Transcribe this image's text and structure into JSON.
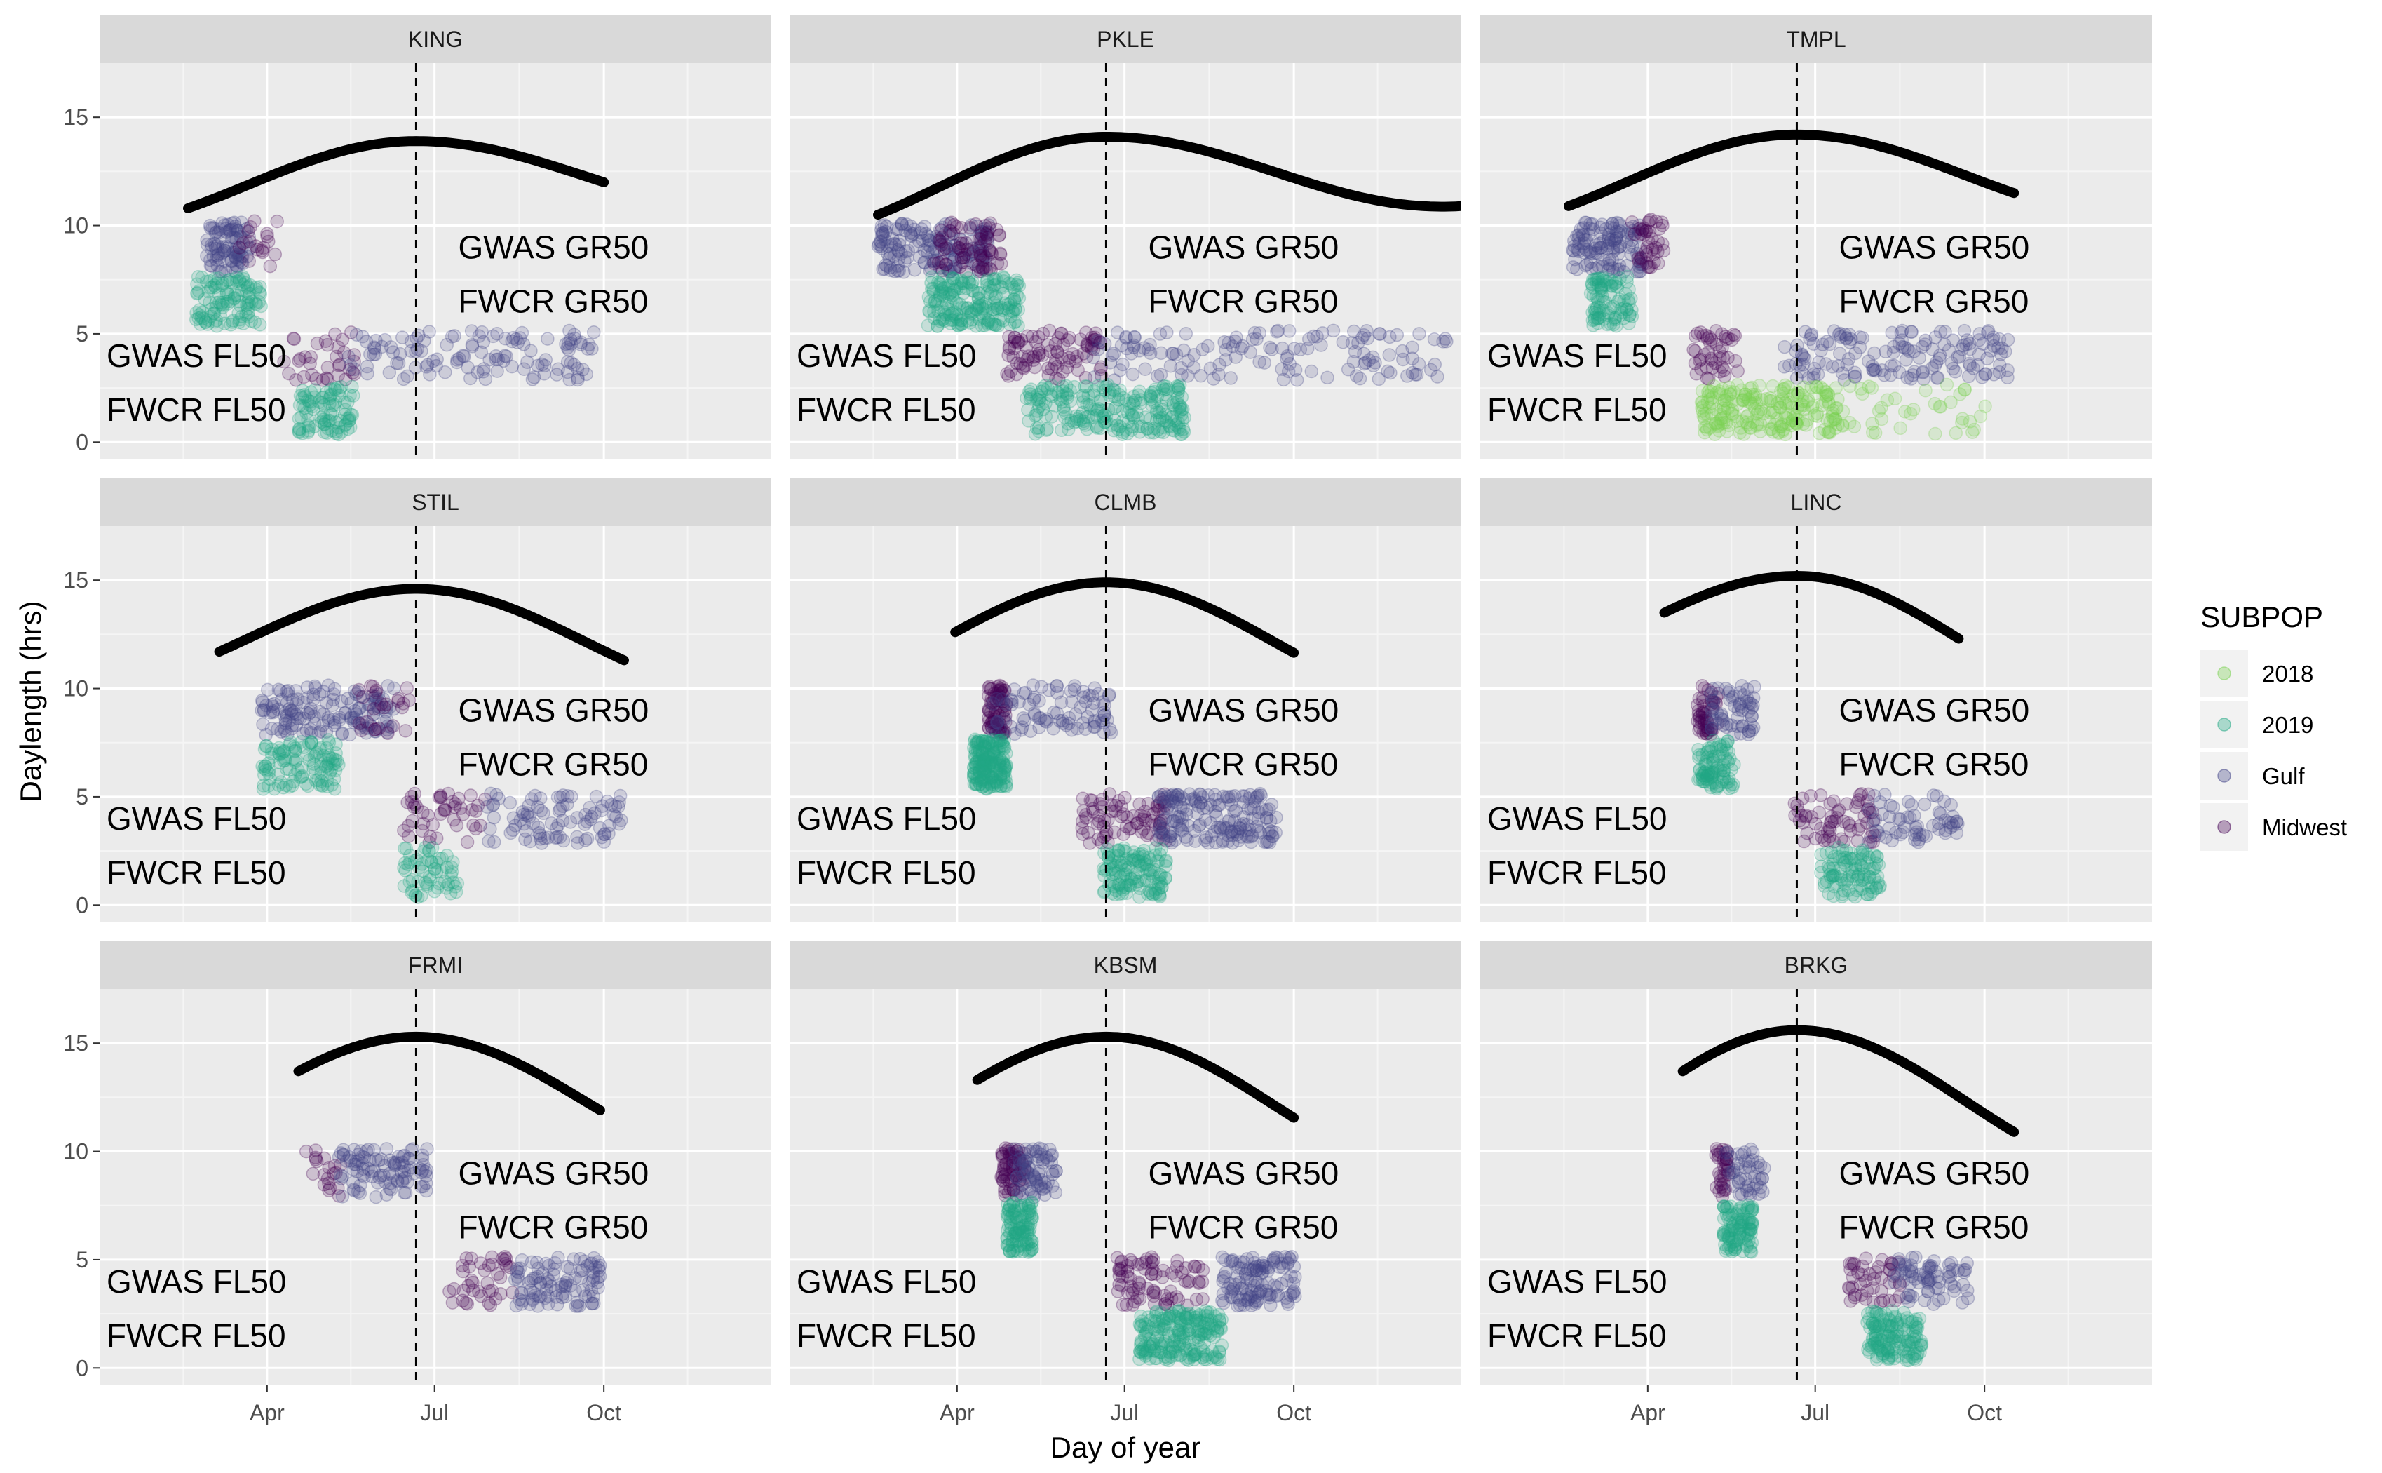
{
  "chart_data": {
    "type": "scatter",
    "xlabel": "Day of year",
    "ylabel": "Daylength (hrs)",
    "xlim": [
      0,
      365
    ],
    "ylim": [
      -0.8,
      17.5
    ],
    "x_ticks": [
      {
        "day": 91,
        "label": "Apr"
      },
      {
        "day": 182,
        "label": "Jul"
      },
      {
        "day": 274,
        "label": "Oct"
      }
    ],
    "y_ticks": [
      0,
      5,
      10,
      15
    ],
    "solstice_day": 172,
    "legend": {
      "title": "SUBPOP",
      "placement": "right",
      "entries": [
        {
          "key": "2018",
          "label": "2018",
          "color": "#7AD151"
        },
        {
          "key": "2019",
          "label": "2019",
          "color": "#22A884"
        },
        {
          "key": "Gulf",
          "label": "Gulf",
          "color": "#414487"
        },
        {
          "key": "Midwest",
          "label": "Midwest",
          "color": "#440154"
        }
      ]
    },
    "annotations": {
      "gwas_gr50": {
        "text": "GWAS GR50",
        "y": 9
      },
      "fwcr_gr50": {
        "text": "FWCR GR50",
        "y": 6.5
      },
      "gwas_fl50": {
        "text": "GWAS FL50",
        "y": 4
      },
      "fwcr_fl50": {
        "text": "FWCR FL50",
        "y": 1.5
      }
    },
    "panels": [
      {
        "name": "KING",
        "daylength_curve": {
          "start": 48,
          "end": 274,
          "min": 10.8,
          "max": 13.9,
          "end_value": 12
        },
        "clusters": [
          {
            "sub": "Gulf",
            "y": 9,
            "x_from": 58,
            "x_to": 82,
            "n": 90
          },
          {
            "sub": "Midwest",
            "y": 9.2,
            "x_from": 75,
            "x_to": 98,
            "n": 18
          },
          {
            "sub": "2019",
            "y": 6.5,
            "x_from": 52,
            "x_to": 88,
            "n": 110
          },
          {
            "sub": "Midwest",
            "y": 4,
            "x_from": 100,
            "x_to": 140,
            "n": 35
          },
          {
            "sub": "Gulf",
            "y": 4,
            "x_from": 135,
            "x_to": 270,
            "n": 120
          },
          {
            "sub": "2019",
            "y": 1.5,
            "x_from": 108,
            "x_to": 138,
            "n": 90
          }
        ]
      },
      {
        "name": "PKLE",
        "daylength_curve": {
          "start": 48,
          "end": 365,
          "min": 10.5,
          "max": 14.1,
          "end_value": 10.9
        },
        "clusters": [
          {
            "sub": "Gulf",
            "y": 9,
            "x_from": 48,
            "x_to": 110,
            "n": 170
          },
          {
            "sub": "Midwest",
            "y": 9,
            "x_from": 78,
            "x_to": 115,
            "n": 70
          },
          {
            "sub": "2019",
            "y": 6.5,
            "x_from": 75,
            "x_to": 125,
            "n": 190
          },
          {
            "sub": "Midwest",
            "y": 4,
            "x_from": 118,
            "x_to": 170,
            "n": 90
          },
          {
            "sub": "Gulf",
            "y": 4,
            "x_from": 165,
            "x_to": 360,
            "n": 140
          },
          {
            "sub": "2019",
            "y": 1.5,
            "x_from": 128,
            "x_to": 215,
            "n": 230
          }
        ]
      },
      {
        "name": "TMPL",
        "daylength_curve": {
          "start": 48,
          "end": 290,
          "min": 10.9,
          "max": 14.2,
          "end_value": 11.5
        },
        "clusters": [
          {
            "sub": "Gulf",
            "y": 9,
            "x_from": 50,
            "x_to": 88,
            "n": 120
          },
          {
            "sub": "Midwest",
            "y": 9.2,
            "x_from": 82,
            "x_to": 100,
            "n": 40
          },
          {
            "sub": "2019",
            "y": 6.5,
            "x_from": 60,
            "x_to": 83,
            "n": 90
          },
          {
            "sub": "Midwest",
            "y": 4,
            "x_from": 115,
            "x_to": 140,
            "n": 45
          },
          {
            "sub": "Gulf",
            "y": 4,
            "x_from": 165,
            "x_to": 287,
            "n": 150
          },
          {
            "sub": "2018",
            "y": 1.5,
            "x_from": 120,
            "x_to": 195,
            "n": 220
          },
          {
            "sub": "2018",
            "y": 1.5,
            "x_from": 195,
            "x_to": 275,
            "n": 40
          }
        ]
      },
      {
        "name": "STIL",
        "daylength_curve": {
          "start": 65,
          "end": 285,
          "min": 11.7,
          "max": 14.6,
          "end_value": 11.3
        },
        "clusters": [
          {
            "sub": "Gulf",
            "y": 9,
            "x_from": 88,
            "x_to": 160,
            "n": 150
          },
          {
            "sub": "Midwest",
            "y": 9,
            "x_from": 140,
            "x_to": 170,
            "n": 25
          },
          {
            "sub": "2019",
            "y": 6.5,
            "x_from": 88,
            "x_to": 130,
            "n": 110
          },
          {
            "sub": "Midwest",
            "y": 4,
            "x_from": 165,
            "x_to": 210,
            "n": 45
          },
          {
            "sub": "Gulf",
            "y": 4,
            "x_from": 210,
            "x_to": 285,
            "n": 90
          },
          {
            "sub": "2019",
            "y": 1.5,
            "x_from": 165,
            "x_to": 195,
            "n": 60
          }
        ]
      },
      {
        "name": "CLMB",
        "daylength_curve": {
          "start": 90,
          "end": 275,
          "min": 12.6,
          "max": 14.9,
          "end_value": 11.6
        },
        "clusters": [
          {
            "sub": "Midwest",
            "y": 9,
            "x_from": 108,
            "x_to": 118,
            "n": 80
          },
          {
            "sub": "Gulf",
            "y": 9,
            "x_from": 110,
            "x_to": 175,
            "n": 90
          },
          {
            "sub": "2019",
            "y": 6.5,
            "x_from": 100,
            "x_to": 118,
            "n": 180
          },
          {
            "sub": "Midwest",
            "y": 4,
            "x_from": 158,
            "x_to": 205,
            "n": 80
          },
          {
            "sub": "Gulf",
            "y": 4,
            "x_from": 200,
            "x_to": 265,
            "n": 170
          },
          {
            "sub": "2019",
            "y": 1.5,
            "x_from": 170,
            "x_to": 205,
            "n": 130
          }
        ]
      },
      {
        "name": "LINC",
        "daylength_curve": {
          "start": 100,
          "end": 260,
          "min": 13.5,
          "max": 15.2,
          "end_value": 12.3
        },
        "clusters": [
          {
            "sub": "Midwest",
            "y": 9,
            "x_from": 118,
            "x_to": 130,
            "n": 50
          },
          {
            "sub": "Gulf",
            "y": 9,
            "x_from": 125,
            "x_to": 150,
            "n": 60
          },
          {
            "sub": "2019",
            "y": 6.5,
            "x_from": 118,
            "x_to": 138,
            "n": 90
          },
          {
            "sub": "Midwest",
            "y": 4,
            "x_from": 170,
            "x_to": 215,
            "n": 65
          },
          {
            "sub": "Gulf",
            "y": 4,
            "x_from": 210,
            "x_to": 260,
            "n": 60
          },
          {
            "sub": "2019",
            "y": 1.5,
            "x_from": 185,
            "x_to": 218,
            "n": 100
          }
        ]
      },
      {
        "name": "FRMI",
        "daylength_curve": {
          "start": 108,
          "end": 272,
          "min": 13.7,
          "max": 15.3,
          "end_value": 11.9
        },
        "clusters": [
          {
            "sub": "Midwest",
            "y": 9,
            "x_from": 112,
            "x_to": 135,
            "n": 20
          },
          {
            "sub": "Gulf",
            "y": 9,
            "x_from": 130,
            "x_to": 178,
            "n": 100
          },
          {
            "sub": "Midwest",
            "y": 4,
            "x_from": 190,
            "x_to": 225,
            "n": 40
          },
          {
            "sub": "Gulf",
            "y": 4,
            "x_from": 225,
            "x_to": 272,
            "n": 100
          }
        ]
      },
      {
        "name": "KBSM",
        "daylength_curve": {
          "start": 102,
          "end": 275,
          "min": 13.3,
          "max": 15.3,
          "end_value": 11.5
        },
        "clusters": [
          {
            "sub": "Midwest",
            "y": 9,
            "x_from": 115,
            "x_to": 128,
            "n": 70
          },
          {
            "sub": "Gulf",
            "y": 9,
            "x_from": 122,
            "x_to": 145,
            "n": 70
          },
          {
            "sub": "2019",
            "y": 6.5,
            "x_from": 118,
            "x_to": 132,
            "n": 110
          },
          {
            "sub": "Midwest",
            "y": 4,
            "x_from": 178,
            "x_to": 225,
            "n": 80
          },
          {
            "sub": "Gulf",
            "y": 4,
            "x_from": 235,
            "x_to": 275,
            "n": 120
          },
          {
            "sub": "2019",
            "y": 1.5,
            "x_from": 190,
            "x_to": 235,
            "n": 210
          }
        ]
      },
      {
        "name": "BRKG",
        "daylength_curve": {
          "start": 110,
          "end": 290,
          "min": 13.7,
          "max": 15.6,
          "end_value": 10.9
        },
        "clusters": [
          {
            "sub": "Midwest",
            "y": 9,
            "x_from": 128,
            "x_to": 135,
            "n": 35
          },
          {
            "sub": "Gulf",
            "y": 9,
            "x_from": 133,
            "x_to": 155,
            "n": 45
          },
          {
            "sub": "2019",
            "y": 6.5,
            "x_from": 132,
            "x_to": 148,
            "n": 100
          },
          {
            "sub": "Midwest",
            "y": 4,
            "x_from": 200,
            "x_to": 230,
            "n": 45
          },
          {
            "sub": "Gulf",
            "y": 4,
            "x_from": 225,
            "x_to": 265,
            "n": 70
          },
          {
            "sub": "2019",
            "y": 1.5,
            "x_from": 210,
            "x_to": 240,
            "n": 140
          }
        ]
      }
    ]
  }
}
